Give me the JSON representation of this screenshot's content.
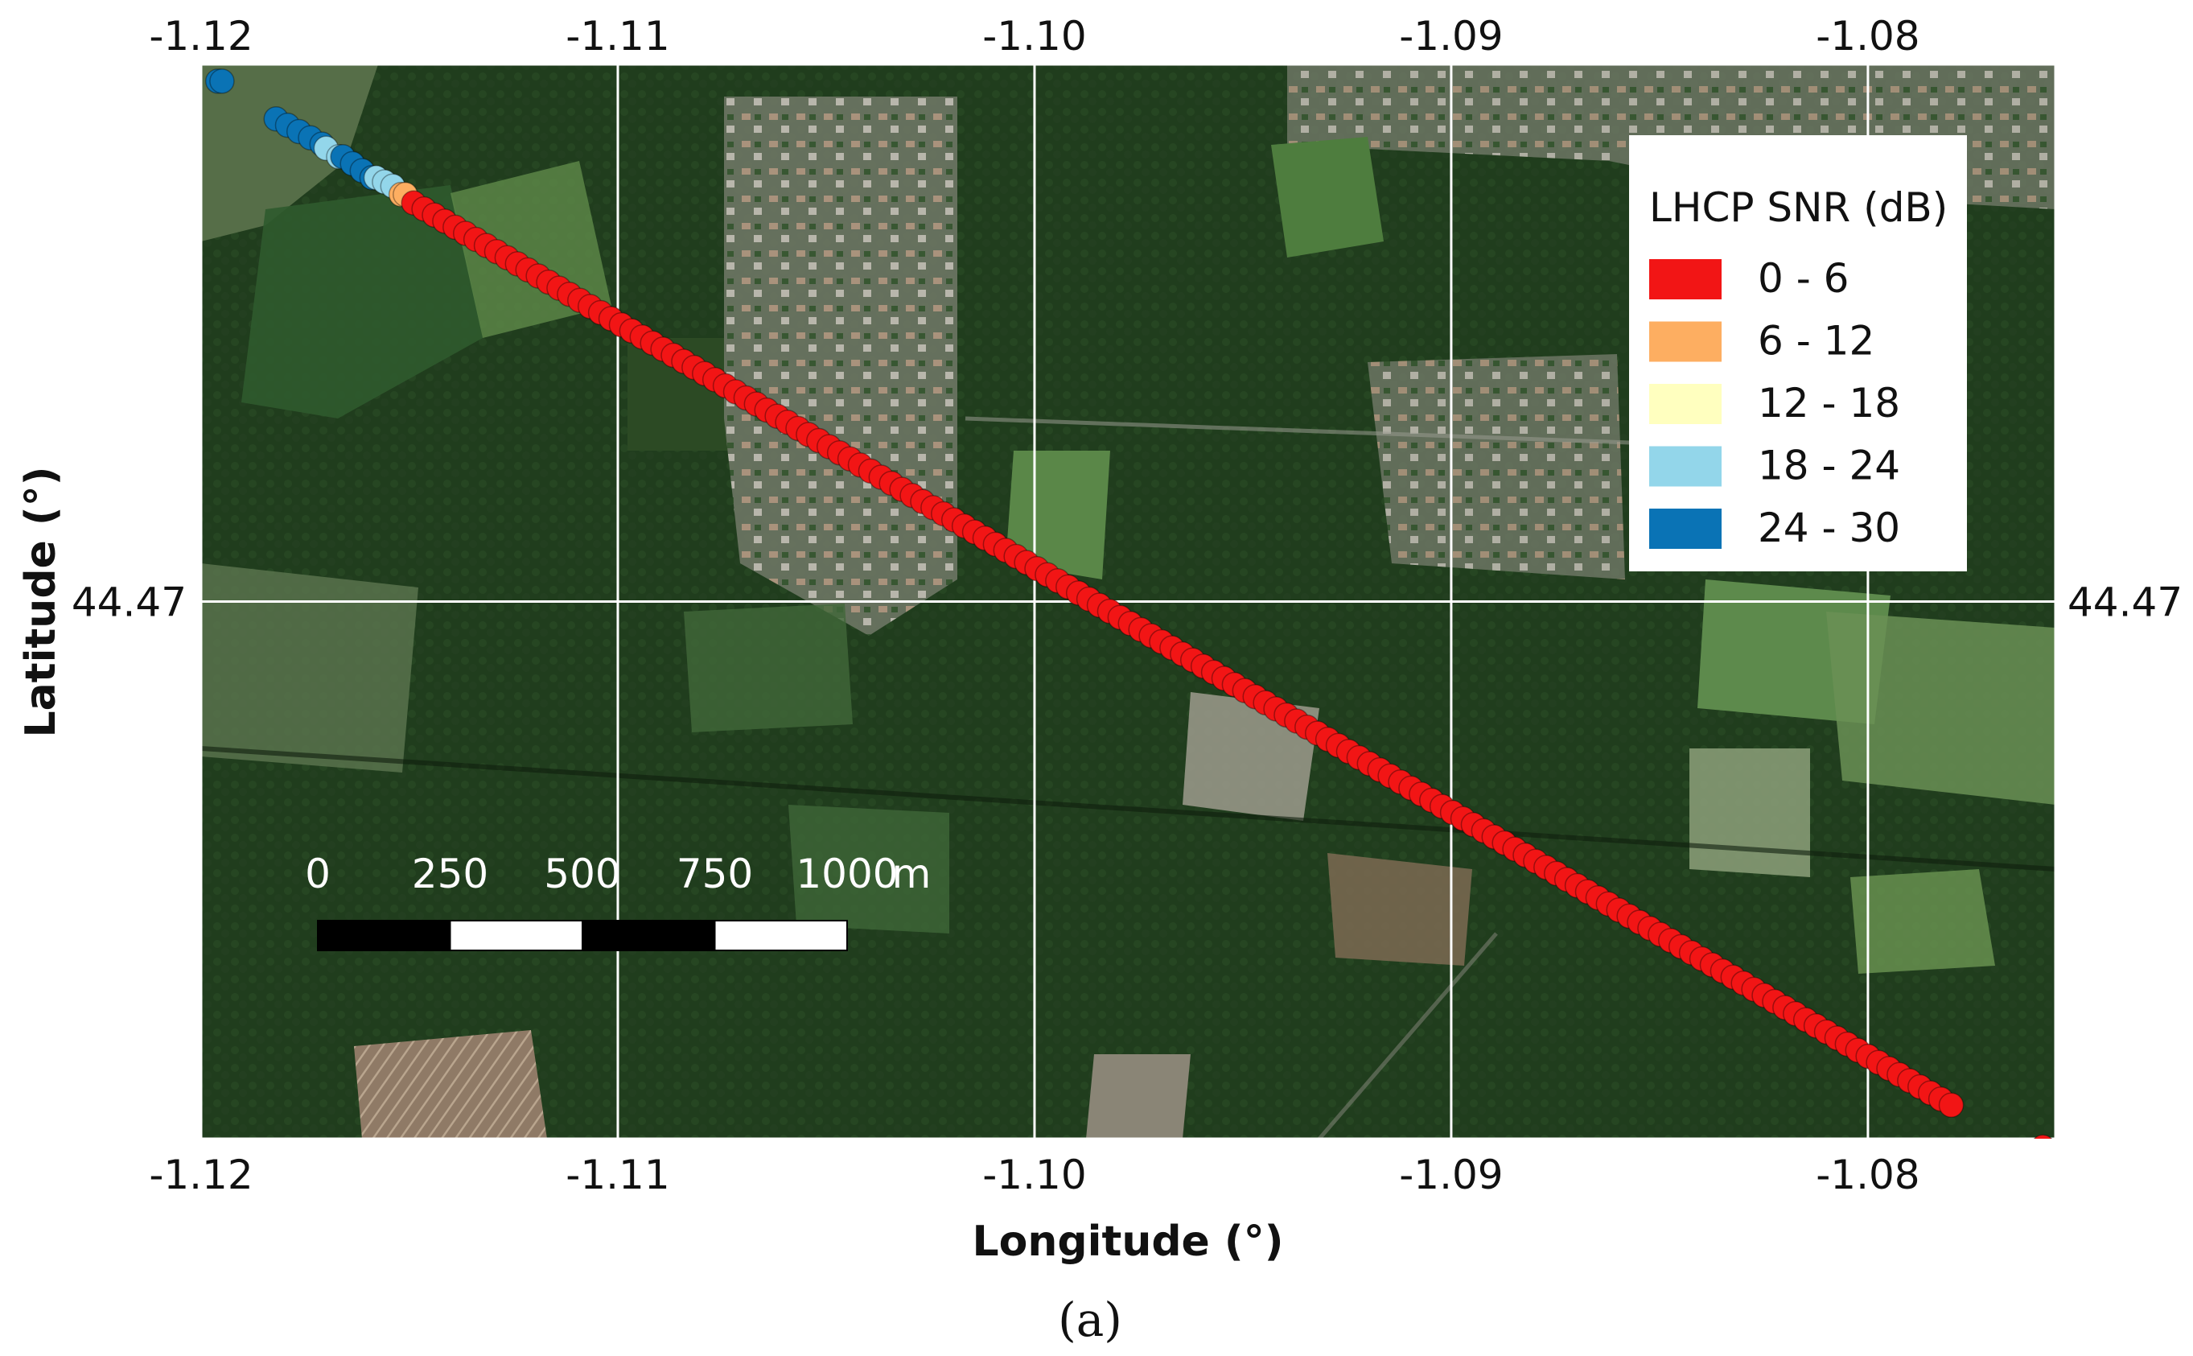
{
  "chart_data": {
    "type": "scatter",
    "xlabel": "Longitude (°)",
    "ylabel": "Latitude (°)",
    "xlim": [
      -1.12,
      -1.0755
    ],
    "ylim": [
      44.4572,
      44.4828
    ],
    "x_ticks": [
      {
        "value": -1.12,
        "label": "-1.12"
      },
      {
        "value": -1.11,
        "label": "-1.11"
      },
      {
        "value": -1.1,
        "label": "-1.10"
      },
      {
        "value": -1.09,
        "label": "-1.09"
      },
      {
        "value": -1.08,
        "label": "-1.08"
      }
    ],
    "y_ticks": [
      {
        "value": 44.47,
        "label": "44.47"
      }
    ],
    "grid": true,
    "legend": {
      "title": "LHCP SNR (dB)",
      "placement": "top-right",
      "entries": [
        {
          "label": "0 - 6",
          "color": "#f21515"
        },
        {
          "label": "6 - 12",
          "color": "#fdae61"
        },
        {
          "label": "12 - 18",
          "color": "#ffffbf"
        },
        {
          "label": "18 - 24",
          "color": "#93d6ea"
        },
        {
          "label": "24 - 30",
          "color": "#0a73b5"
        }
      ]
    },
    "track_segments": [
      {
        "class": "24 - 30",
        "color": "#0a73b5",
        "start": [
          -1.1196,
          44.4824
        ],
        "end": [
          -1.1195,
          44.4824
        ]
      },
      {
        "class": "24 - 30",
        "color": "#0a73b5",
        "start": [
          -1.1182,
          44.4815
        ],
        "end": [
          -1.1171,
          44.4809
        ]
      },
      {
        "class": "18 - 24",
        "color": "#93d6ea",
        "start": [
          -1.117,
          44.4808
        ],
        "end": [
          -1.1167,
          44.4806
        ]
      },
      {
        "class": "24 - 30",
        "color": "#0a73b5",
        "start": [
          -1.1166,
          44.4806
        ],
        "end": [
          -1.1159,
          44.4801
        ]
      },
      {
        "class": "18 - 24",
        "color": "#93d6ea",
        "start": [
          -1.1158,
          44.4801
        ],
        "end": [
          -1.1154,
          44.4799
        ]
      },
      {
        "class": "6 - 12",
        "color": "#fdae61",
        "start": [
          -1.1152,
          44.4797
        ],
        "end": [
          -1.1151,
          44.4797
        ]
      },
      {
        "class": "0 - 6",
        "color": "#f21515",
        "start": [
          -1.1149,
          44.4795
        ],
        "end": [
          -1.078,
          44.458
        ]
      },
      {
        "class": "0 - 6",
        "color": "#f21515",
        "start": [
          -1.0758,
          44.457
        ],
        "end": [
          -1.0754,
          44.4567
        ]
      }
    ],
    "scale_bar": {
      "labels": [
        "0",
        "250",
        "500",
        "750",
        "1000"
      ],
      "unit": "m"
    }
  },
  "caption": "(a)"
}
